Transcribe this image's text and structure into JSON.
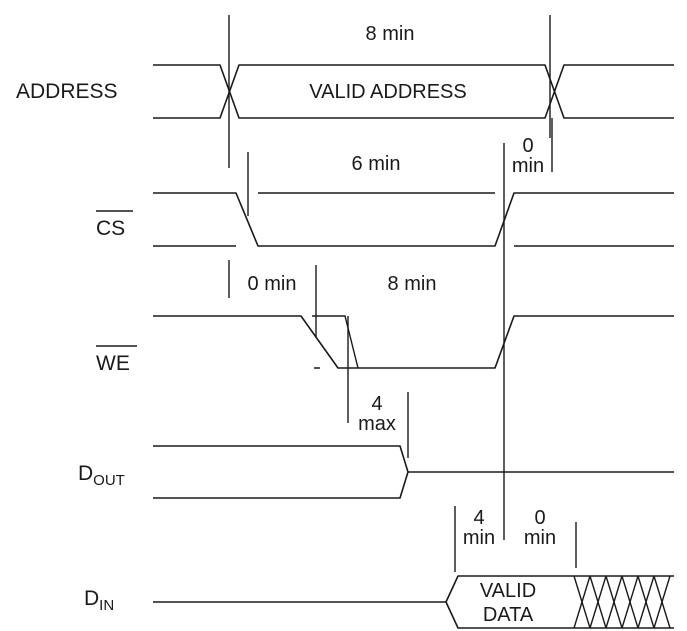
{
  "signals": {
    "address": "ADDRESS",
    "cs": "CS",
    "we": "WE",
    "dout": {
      "base": "D",
      "sub": "OUT"
    },
    "din": {
      "base": "D",
      "sub": "IN"
    }
  },
  "states": {
    "valid_address": "VALID ADDRESS",
    "valid_data_line1": "VALID",
    "valid_data_line2": "DATA"
  },
  "timing": {
    "address_valid": "8 min",
    "cs_low": "6 min",
    "address_hold_value": "0",
    "address_hold_unit": "min",
    "address_to_we": "0 min",
    "we_low": "8 min",
    "output_disable_value": "4",
    "output_disable_unit": "max",
    "data_setup_value": "4",
    "data_setup_unit": "min",
    "data_hold_value": "0",
    "data_hold_unit": "min"
  }
}
